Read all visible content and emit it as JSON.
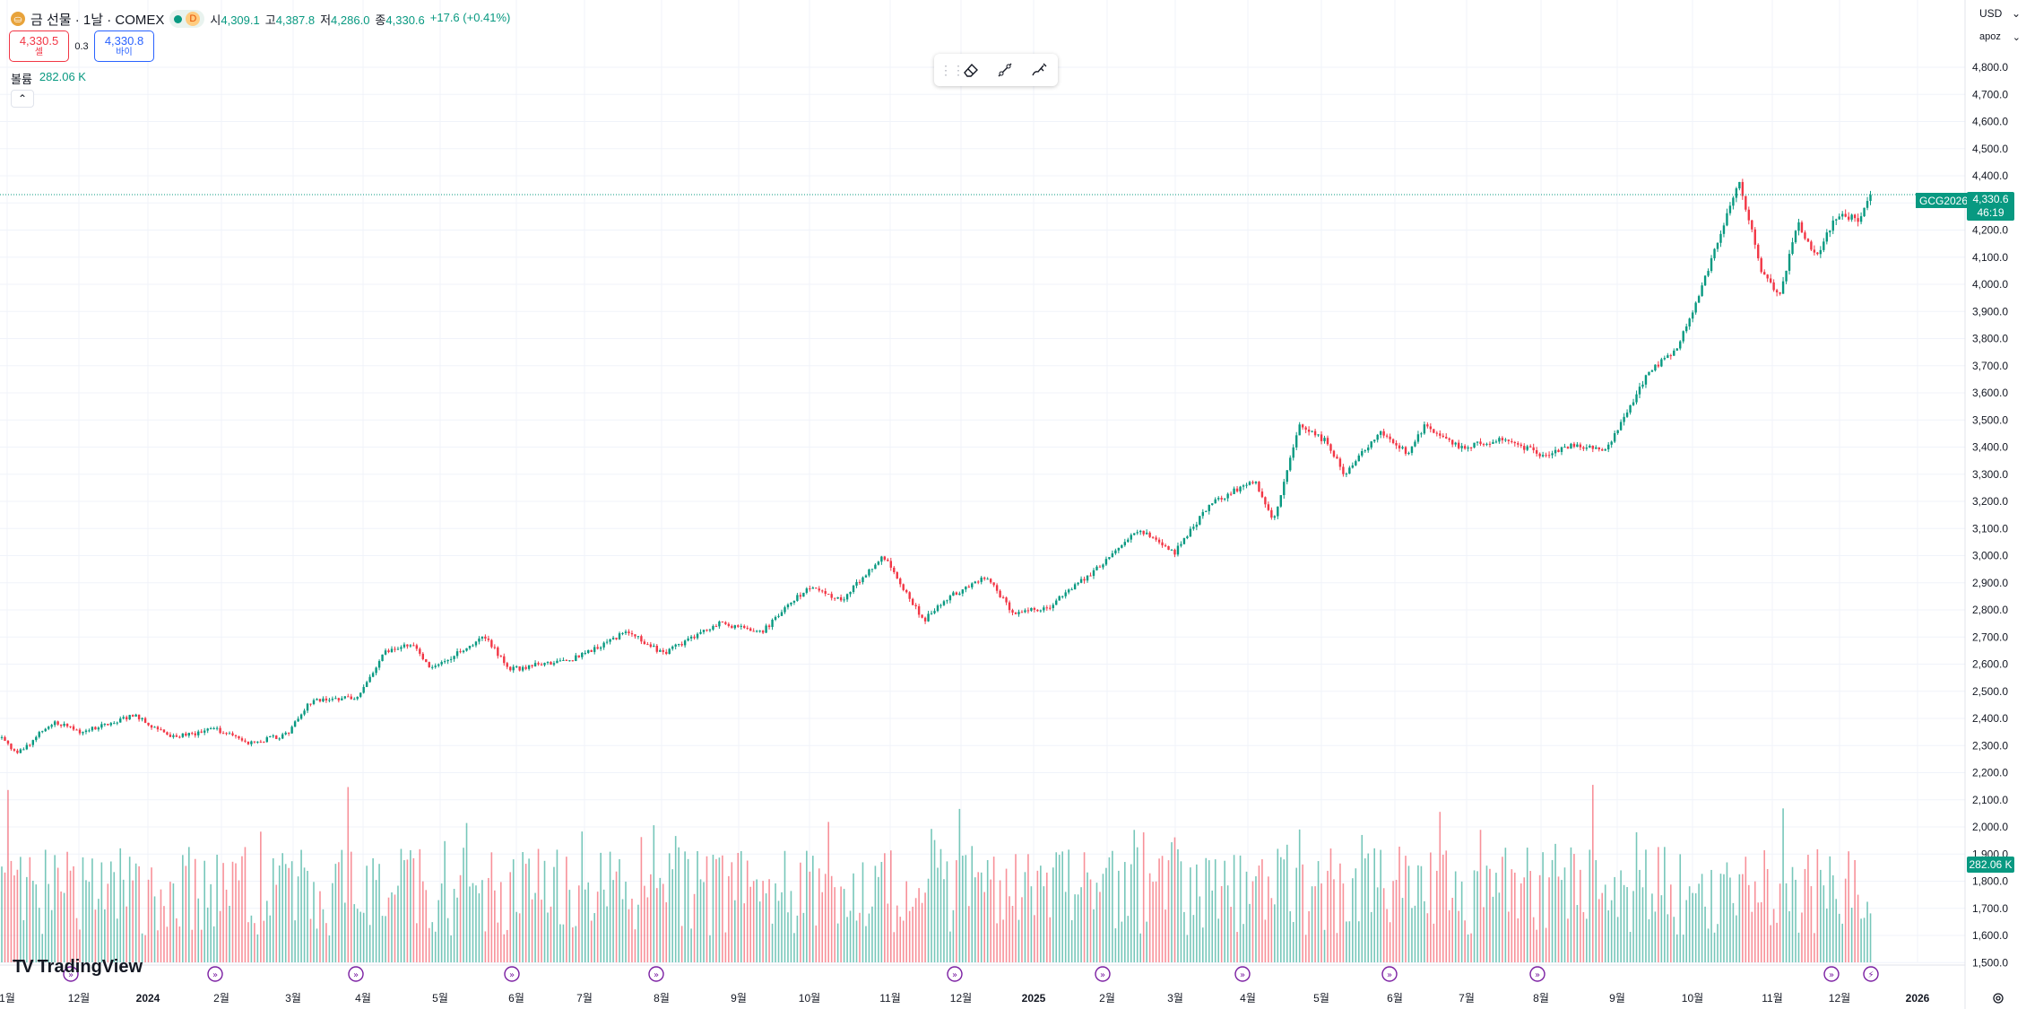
{
  "legend": {
    "symbol_icon": "gold-coin-icon",
    "title": "금 선물 · 1날 · COMEX",
    "interval_badge": "D",
    "open_label": "시",
    "open": "4,309.1",
    "high_label": "고",
    "high": "4,387.8",
    "low_label": "저",
    "low": "4,286.0",
    "close_label": "종",
    "close": "4,330.6",
    "change": "+17.6 (+0.41%)"
  },
  "trade": {
    "sell_price": "4,330.5",
    "sell_label": "셀",
    "spread": "0.3",
    "buy_price": "4,330.8",
    "buy_label": "바이"
  },
  "volume_legend": {
    "label": "볼륨",
    "value": "282.06 K"
  },
  "drawing_toolbar": {
    "icons": [
      "grip-icon",
      "eraser-icon",
      "trend-line-icon",
      "brush-icon"
    ]
  },
  "top_right": {
    "currency": "USD",
    "unit": "apoz"
  },
  "price_scale": {
    "ticks": [
      "4,800.0",
      "4,700.0",
      "4,600.0",
      "4,500.0",
      "4,400.0",
      "4,300.0",
      "4,200.0",
      "4,100.0",
      "4,000.0",
      "3,900.0",
      "3,800.0",
      "3,700.0",
      "3,600.0",
      "3,500.0",
      "3,400.0",
      "3,300.0",
      "3,200.0",
      "3,100.0",
      "3,000.0",
      "2,900.0",
      "2,800.0",
      "2,700.0",
      "2,600.0",
      "2,500.0",
      "2,400.0",
      "2,300.0",
      "2,200.0",
      "2,100.0",
      "2,000.0",
      "1,900.0",
      "1,800.0",
      "1,700.0",
      "1,600.0",
      "1,500.0"
    ]
  },
  "time_scale": {
    "labels": [
      "1월",
      "12월",
      "2024",
      "2월",
      "3월",
      "4월",
      "5월",
      "6월",
      "7월",
      "8월",
      "9월",
      "10월",
      "11월",
      "12월",
      "2025",
      "2월",
      "3월",
      "4월",
      "5월",
      "6월",
      "7월",
      "8월",
      "9월",
      "10월",
      "11월",
      "12월",
      "2026"
    ]
  },
  "last_price": {
    "symbol": "GCG2026",
    "price": "4,330.6",
    "countdown": "46:19",
    "volume": "282.06 K"
  },
  "branding": {
    "logo_mark": "TV",
    "logo_text": "TradingView"
  },
  "colors": {
    "up": "#089981",
    "down": "#f23645",
    "grid": "#f0f3fa",
    "text": "#131722"
  },
  "chart_data": {
    "type": "candlestick",
    "title": "금 선물 · 1날 · COMEX",
    "ylim": [
      1450,
      4900
    ],
    "anchors": [
      {
        "x": 0,
        "y": 2330
      },
      {
        "x": 20,
        "y": 2270
      },
      {
        "x": 60,
        "y": 2390
      },
      {
        "x": 90,
        "y": 2350
      },
      {
        "x": 150,
        "y": 2410
      },
      {
        "x": 190,
        "y": 2330
      },
      {
        "x": 240,
        "y": 2360
      },
      {
        "x": 280,
        "y": 2310
      },
      {
        "x": 320,
        "y": 2340
      },
      {
        "x": 345,
        "y": 2460
      },
      {
        "x": 400,
        "y": 2480
      },
      {
        "x": 430,
        "y": 2650
      },
      {
        "x": 460,
        "y": 2680
      },
      {
        "x": 480,
        "y": 2580
      },
      {
        "x": 540,
        "y": 2700
      },
      {
        "x": 570,
        "y": 2580
      },
      {
        "x": 640,
        "y": 2620
      },
      {
        "x": 700,
        "y": 2720
      },
      {
        "x": 740,
        "y": 2640
      },
      {
        "x": 800,
        "y": 2750
      },
      {
        "x": 850,
        "y": 2720
      },
      {
        "x": 900,
        "y": 2880
      },
      {
        "x": 940,
        "y": 2840
      },
      {
        "x": 985,
        "y": 3000
      },
      {
        "x": 1030,
        "y": 2760
      },
      {
        "x": 1060,
        "y": 2850
      },
      {
        "x": 1100,
        "y": 2920
      },
      {
        "x": 1130,
        "y": 2790
      },
      {
        "x": 1170,
        "y": 2810
      },
      {
        "x": 1230,
        "y": 2970
      },
      {
        "x": 1270,
        "y": 3100
      },
      {
        "x": 1310,
        "y": 3010
      },
      {
        "x": 1350,
        "y": 3190
      },
      {
        "x": 1400,
        "y": 3280
      },
      {
        "x": 1420,
        "y": 3120
      },
      {
        "x": 1450,
        "y": 3480
      },
      {
        "x": 1480,
        "y": 3420
      },
      {
        "x": 1500,
        "y": 3300
      },
      {
        "x": 1540,
        "y": 3460
      },
      {
        "x": 1570,
        "y": 3380
      },
      {
        "x": 1590,
        "y": 3480
      },
      {
        "x": 1630,
        "y": 3400
      },
      {
        "x": 1680,
        "y": 3430
      },
      {
        "x": 1720,
        "y": 3370
      },
      {
        "x": 1760,
        "y": 3410
      },
      {
        "x": 1790,
        "y": 3380
      },
      {
        "x": 1810,
        "y": 3500
      },
      {
        "x": 1840,
        "y": 3680
      },
      {
        "x": 1870,
        "y": 3760
      },
      {
        "x": 1900,
        "y": 4000
      },
      {
        "x": 1920,
        "y": 4190
      },
      {
        "x": 1940,
        "y": 4380
      },
      {
        "x": 1965,
        "y": 4050
      },
      {
        "x": 1985,
        "y": 3960
      },
      {
        "x": 2005,
        "y": 4230
      },
      {
        "x": 2025,
        "y": 4100
      },
      {
        "x": 2050,
        "y": 4260
      },
      {
        "x": 2075,
        "y": 4240
      },
      {
        "x": 2088,
        "y": 4330
      }
    ],
    "volume_bars": 600
  }
}
